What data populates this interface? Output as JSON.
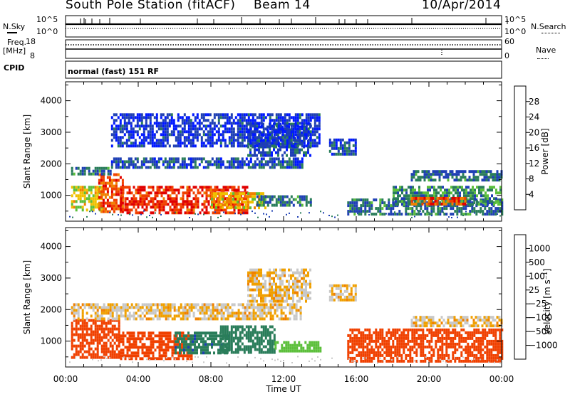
{
  "header": {
    "station": "South Pole Station (fitACF)",
    "beam": "Beam 14",
    "date": "10/Apr/2014"
  },
  "params": {
    "nsky_label": "N.Sky",
    "nsky_ticks": [
      "10^5",
      "10^0"
    ],
    "nsearch_label": "N.Search",
    "nsearch_ticks": [
      "10^5",
      "10^0"
    ],
    "freq_label": "Freq.",
    "freq_unit": "[MHz]",
    "freq_ticks": [
      "18",
      "8"
    ],
    "nave_label": "Nave",
    "nave_ticks": [
      "60",
      "0"
    ],
    "cpid_label": "CPID",
    "cpid_value": "normal (fast) 151 RF"
  },
  "colors": {
    "power_scale": [
      "#0018ff",
      "#1e3fb4",
      "#2a7d5a",
      "#5bbf3a",
      "#f0c000",
      "#f08000",
      "#f04000",
      "#e00000"
    ],
    "velocity_scale": [
      "#e00000",
      "#f04000",
      "#f08000",
      "#f0a000",
      "#c8c8c8",
      "#5bbf3a",
      "#2a7d5a",
      "#1e3fb4",
      "#0018ff"
    ]
  },
  "chart_data": [
    {
      "type": "heatmap",
      "name": "power",
      "ylabel": "Slant Range [km]",
      "xlabel": "",
      "xlim": [
        "00:00",
        "24:00"
      ],
      "ylim": [
        180,
        4600
      ],
      "yticks": [
        1000,
        2000,
        3000,
        4000
      ],
      "colorbar": {
        "label": "Power [dB]",
        "ticks": [
          "28",
          "24",
          "20",
          "16",
          "12",
          "8",
          "4"
        ],
        "range": [
          0,
          30
        ]
      },
      "regions": [
        {
          "t0": 0.3,
          "t1": 2.0,
          "r0": 500,
          "r1": 1300,
          "level": 16
        },
        {
          "t0": 1.8,
          "t1": 3.2,
          "r0": 450,
          "r1": 1700,
          "level": 24
        },
        {
          "t0": 3.0,
          "t1": 10.0,
          "r0": 450,
          "r1": 1300,
          "level": 26
        },
        {
          "t0": 8.0,
          "t1": 11.0,
          "r0": 600,
          "r1": 1100,
          "level": 18
        },
        {
          "t0": 10.5,
          "t1": 13.5,
          "r0": 650,
          "r1": 1000,
          "level": 8
        },
        {
          "t0": 0.3,
          "t1": 2.5,
          "r0": 1700,
          "r1": 1900,
          "level": 8
        },
        {
          "t0": 2.5,
          "t1": 13.0,
          "r0": 1900,
          "r1": 2200,
          "level": 6
        },
        {
          "t0": 10.0,
          "t1": 13.5,
          "r0": 2300,
          "r1": 3300,
          "level": 6
        },
        {
          "t0": 14.5,
          "t1": 16.0,
          "r0": 2300,
          "r1": 2800,
          "level": 6
        },
        {
          "t0": 15.5,
          "t1": 24.0,
          "r0": 400,
          "r1": 900,
          "level": 8
        },
        {
          "t0": 18.0,
          "t1": 24.0,
          "r0": 700,
          "r1": 1300,
          "level": 10
        },
        {
          "t0": 19.0,
          "t1": 22.0,
          "r0": 700,
          "r1": 950,
          "level": 24
        },
        {
          "t0": 19.0,
          "t1": 24.0,
          "r0": 1500,
          "r1": 1800,
          "level": 8
        },
        {
          "t0": 2.5,
          "t1": 14.0,
          "r0": 2600,
          "r1": 3600,
          "level": 4
        }
      ]
    },
    {
      "type": "heatmap",
      "name": "velocity",
      "ylabel": "Slant Range [km]",
      "xlabel": "Time UT",
      "xlim": [
        "00:00",
        "24:00"
      ],
      "xticks": [
        "00:00",
        "04:00",
        "08:00",
        "12:00",
        "16:00",
        "20:00",
        "00:00"
      ],
      "ylim": [
        180,
        4600
      ],
      "yticks": [
        1000,
        2000,
        3000,
        4000
      ],
      "colorbar": {
        "label": "Velocity [m s⁻¹]",
        "ticks": [
          "1000",
          "500",
          "100",
          "25",
          "−25",
          "−100",
          "−500",
          "−1000"
        ],
        "range": [
          -1000,
          1000
        ]
      },
      "regions": [
        {
          "t0": 0.3,
          "t1": 3.0,
          "r0": 500,
          "r1": 1700,
          "level": -300
        },
        {
          "t0": 3.0,
          "t1": 7.0,
          "r0": 450,
          "r1": 1300,
          "level": -200
        },
        {
          "t0": 6.0,
          "t1": 9.0,
          "r0": 600,
          "r1": 1300,
          "level": 400
        },
        {
          "t0": 8.5,
          "t1": 11.5,
          "r0": 600,
          "r1": 1500,
          "level": 200
        },
        {
          "t0": 11.5,
          "t1": 14.0,
          "r0": 650,
          "r1": 1000,
          "level": 60
        },
        {
          "t0": 0.3,
          "t1": 13.0,
          "r0": 1700,
          "r1": 2200,
          "level": -10
        },
        {
          "t0": 10.0,
          "t1": 13.5,
          "r0": 2300,
          "r1": 3300,
          "level": -10
        },
        {
          "t0": 14.5,
          "t1": 16.0,
          "r0": 2300,
          "r1": 2800,
          "level": -10
        },
        {
          "t0": 15.5,
          "t1": 24.0,
          "r0": 400,
          "r1": 1400,
          "level": -300
        },
        {
          "t0": 19.0,
          "t1": 24.0,
          "r0": 1500,
          "r1": 1800,
          "level": -10
        }
      ]
    }
  ]
}
